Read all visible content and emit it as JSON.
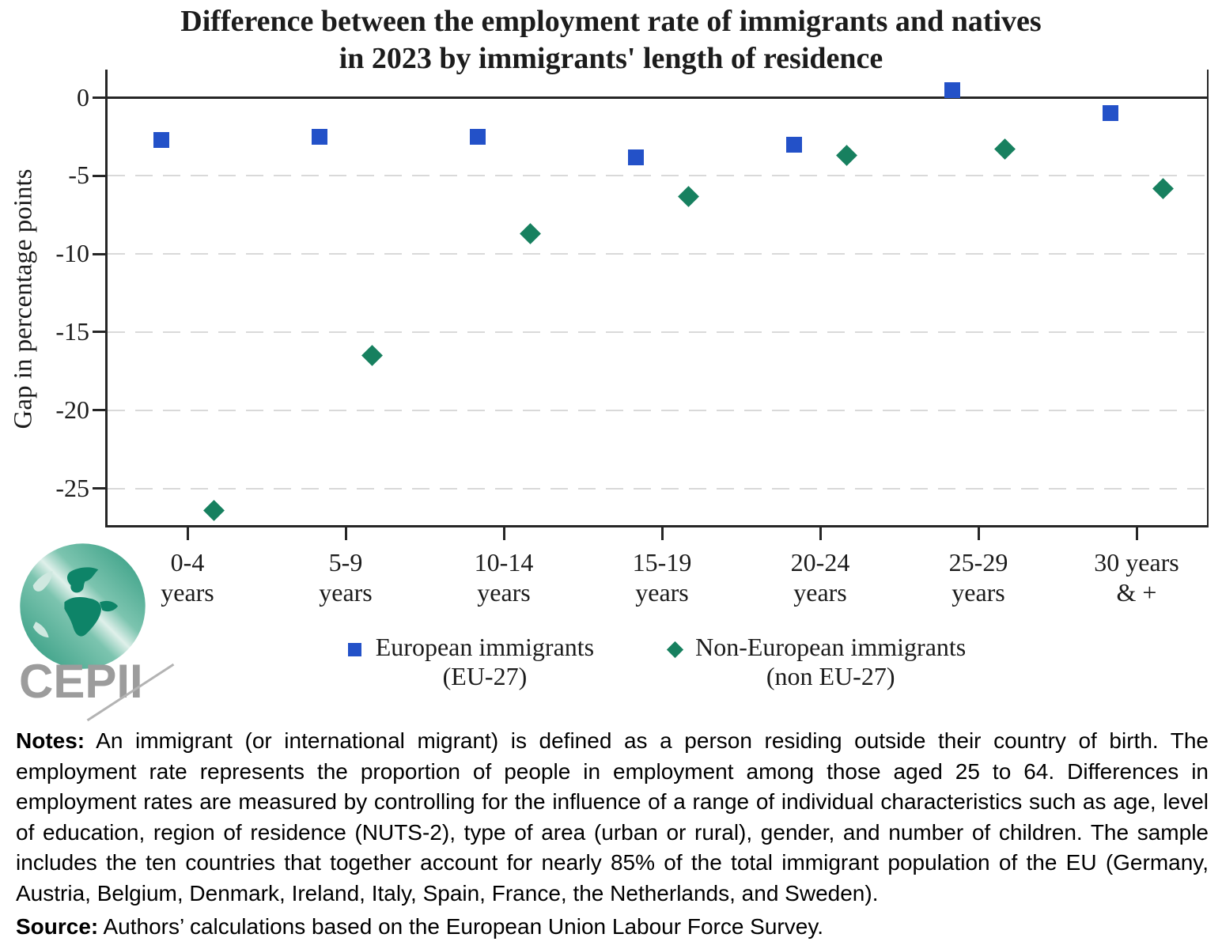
{
  "title": {
    "line1": "Difference between the employment rate of immigrants and natives",
    "line2": "in 2023 by immigrants' length of residence"
  },
  "chart_data": {
    "type": "scatter",
    "title": "Difference between the employment rate of immigrants and natives in 2023 by immigrants' length of residence",
    "ylabel": "Gap in percentage points",
    "xlabel": "",
    "categories": [
      [
        "0-4",
        "years"
      ],
      [
        "5-9",
        "years"
      ],
      [
        "10-14",
        "years"
      ],
      [
        "15-19",
        "years"
      ],
      [
        "20-24",
        "years"
      ],
      [
        "25-29",
        "years"
      ],
      [
        "30 years",
        "& +"
      ]
    ],
    "yticks": [
      0,
      -5,
      -10,
      -15,
      -20,
      -25
    ],
    "ylim": [
      -27.5,
      1.8
    ],
    "grid": "horizontal dashed gridlines at negative ticks, solid line at 0",
    "legend_position": "bottom",
    "series": [
      {
        "name": "European immigrants (EU-27)",
        "label_lines": [
          "European immigrants",
          "(EU-27)"
        ],
        "marker": "square",
        "color": "#2351c8",
        "values": [
          -2.7,
          -2.5,
          -2.5,
          -3.8,
          -3.0,
          0.5,
          -1.0
        ]
      },
      {
        "name": "Non-European immigrants (non EU-27)",
        "label_lines": [
          "Non-European immigrants",
          "(non EU-27)"
        ],
        "marker": "diamond",
        "color": "#17805f",
        "values": [
          -26.4,
          -16.5,
          -8.7,
          -6.3,
          -3.7,
          -3.3,
          -5.8
        ]
      }
    ]
  },
  "notes": {
    "label": "Notes:",
    "text": "An immigrant (or international migrant) is defined as a person residing outside their country of birth. The employment rate represents the proportion of people in employment among those aged 25 to 64. Differences in employment rates are measured by controlling for the influence of a range of individual characteristics such as age, level of education, region of residence (NUTS-2), type of area (urban or rural), gender, and number of children. The sample includes the ten countries that together account for nearly 85% of the total immigrant population of the EU (Germany, Austria, Belgium, Denmark, Ireland, Italy, Spain, France, the Netherlands, and Sweden)."
  },
  "source": {
    "label": "Source:",
    "text": "Authors’ calculations based on the European Union Labour Force Survey."
  },
  "logo": {
    "text": "CEPII"
  },
  "colors": {
    "eu_blue": "#2351c8",
    "noneu_green": "#17805f",
    "grid_gray": "#d9d9d9",
    "axis_dark": "#262626",
    "logo_gray": "#9c9c9c",
    "logo_teal": "#0e8468"
  }
}
